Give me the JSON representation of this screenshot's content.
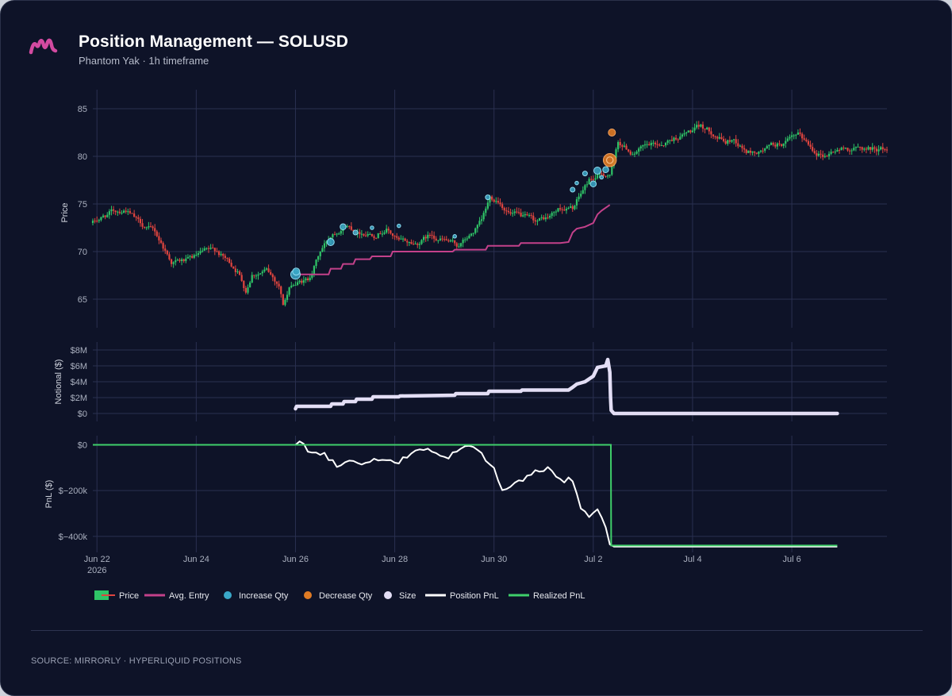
{
  "header": {
    "title": "Position Management — SOLUSD",
    "subtitle": "Phantom Yak · 1h timeframe"
  },
  "footer": {
    "source": "SOURCE: MIRRORLY · HYPERLIQUID POSITIONS"
  },
  "colors": {
    "background": "#0e1328",
    "grid": "#2a3050",
    "candle_up": "#2fc467",
    "candle_down": "#e0453f",
    "avg_entry": "#c3418a",
    "increase": "#3aa8c8",
    "decrease": "#e07b24",
    "size": "#e3def5",
    "position_pnl": "#ffffff",
    "realized_pnl": "#3fcf6a",
    "logo": "#d24aa0"
  },
  "chart_data": [
    {
      "type": "candlestick",
      "ylabel": "Price",
      "ylim": [
        62,
        87
      ],
      "yticks": [
        65,
        70,
        75,
        80,
        85
      ],
      "xlim": [
        "2026-06-21T22:00",
        "2026-07-07T22:00"
      ],
      "grid": true,
      "price_anchors": [
        [
          "2026-06-21T22:00",
          73.0
        ],
        [
          "2026-06-22T06:00",
          74.0
        ],
        [
          "2026-06-22T14:00",
          74.5
        ],
        [
          "2026-06-22T20:00",
          73.0
        ],
        [
          "2026-06-23T04:00",
          72.0
        ],
        [
          "2026-06-23T12:00",
          69.0
        ],
        [
          "2026-06-23T20:00",
          69.0
        ],
        [
          "2026-06-24T04:00",
          69.8
        ],
        [
          "2026-06-24T10:00",
          70.0
        ],
        [
          "2026-06-24T16:00",
          68.8
        ],
        [
          "2026-06-24T20:00",
          68.0
        ],
        [
          "2026-06-25T00:00",
          66.0
        ],
        [
          "2026-06-25T03:00",
          67.8
        ],
        [
          "2026-06-25T10:00",
          68.0
        ],
        [
          "2026-06-25T16:00",
          66.5
        ],
        [
          "2026-06-25T18:00",
          64.5
        ],
        [
          "2026-06-25T22:00",
          66.5
        ],
        [
          "2026-06-26T06:00",
          67.0
        ],
        [
          "2026-06-26T12:00",
          70.0
        ],
        [
          "2026-06-26T18:00",
          72.0
        ],
        [
          "2026-06-27T00:00",
          73.0
        ],
        [
          "2026-06-27T06:00",
          72.2
        ],
        [
          "2026-06-27T14:00",
          72.0
        ],
        [
          "2026-06-27T20:00",
          72.5
        ],
        [
          "2026-06-28T02:00",
          71.0
        ],
        [
          "2026-06-28T10:00",
          70.8
        ],
        [
          "2026-06-28T18:00",
          71.8
        ],
        [
          "2026-06-29T02:00",
          71.0
        ],
        [
          "2026-06-29T06:00",
          70.5
        ],
        [
          "2026-06-29T12:00",
          71.5
        ],
        [
          "2026-06-29T18:00",
          73.0
        ],
        [
          "2026-06-29T22:00",
          75.5
        ],
        [
          "2026-06-30T02:00",
          75.5
        ],
        [
          "2026-06-30T08:00",
          74.0
        ],
        [
          "2026-06-30T14:00",
          73.5
        ],
        [
          "2026-06-30T20:00",
          73.0
        ],
        [
          "2026-07-01T02:00",
          73.5
        ],
        [
          "2026-07-01T08:00",
          74.5
        ],
        [
          "2026-07-01T14:00",
          74.5
        ],
        [
          "2026-07-01T18:00",
          76.0
        ],
        [
          "2026-07-01T22:00",
          77.5
        ],
        [
          "2026-07-02T04:00",
          78.0
        ],
        [
          "2026-07-02T08:00",
          78.2
        ],
        [
          "2026-07-02T10:00",
          79.5
        ],
        [
          "2026-07-02T12:00",
          81.5
        ],
        [
          "2026-07-02T18:00",
          80.5
        ],
        [
          "2026-07-03T00:00",
          80.8
        ],
        [
          "2026-07-03T08:00",
          81.2
        ],
        [
          "2026-07-03T16:00",
          82.0
        ],
        [
          "2026-07-03T22:00",
          82.5
        ],
        [
          "2026-07-04T04:00",
          83.0
        ],
        [
          "2026-07-04T10:00",
          82.5
        ],
        [
          "2026-07-04T16:00",
          81.5
        ],
        [
          "2026-07-04T20:00",
          81.8
        ],
        [
          "2026-07-05T02:00",
          80.5
        ],
        [
          "2026-07-05T08:00",
          80.4
        ],
        [
          "2026-07-05T14:00",
          81.0
        ],
        [
          "2026-07-05T22:00",
          81.5
        ],
        [
          "2026-07-06T04:00",
          82.0
        ],
        [
          "2026-07-06T10:00",
          80.8
        ],
        [
          "2026-07-06T16:00",
          80.2
        ],
        [
          "2026-07-06T22:00",
          80.8
        ]
      ],
      "avg_entry": [
        [
          "2026-06-26T00:00",
          67.6
        ],
        [
          "2026-06-26T16:00",
          67.6
        ],
        [
          "2026-06-26T17:00",
          68.2
        ],
        [
          "2026-06-26T22:00",
          68.2
        ],
        [
          "2026-06-26T23:00",
          68.7
        ],
        [
          "2026-06-27T04:00",
          68.7
        ],
        [
          "2026-06-27T05:00",
          69.2
        ],
        [
          "2026-06-27T12:00",
          69.2
        ],
        [
          "2026-06-27T13:00",
          69.5
        ],
        [
          "2026-06-27T22:00",
          69.5
        ],
        [
          "2026-06-27T23:00",
          70.0
        ],
        [
          "2026-06-29T04:00",
          70.0
        ],
        [
          "2026-06-29T05:00",
          70.2
        ],
        [
          "2026-06-29T20:00",
          70.2
        ],
        [
          "2026-06-29T21:00",
          70.6
        ],
        [
          "2026-06-30T12:00",
          70.6
        ],
        [
          "2026-06-30T13:00",
          70.9
        ],
        [
          "2026-07-01T08:00",
          70.9
        ],
        [
          "2026-07-01T12:00",
          71.0
        ],
        [
          "2026-07-01T14:00",
          72.0
        ],
        [
          "2026-07-01T16:00",
          72.4
        ],
        [
          "2026-07-01T20:00",
          72.6
        ],
        [
          "2026-07-02T00:00",
          73.0
        ],
        [
          "2026-07-02T02:00",
          73.9
        ],
        [
          "2026-07-02T04:00",
          74.3
        ],
        [
          "2026-07-02T08:00",
          74.9
        ]
      ],
      "increase_qty": [
        [
          "2026-06-26T00:00",
          67.6,
          8
        ],
        [
          "2026-06-26T00:20",
          67.9,
          6
        ],
        [
          "2026-06-26T17:00",
          71.0,
          6
        ],
        [
          "2026-06-26T23:00",
          72.6,
          5
        ],
        [
          "2026-06-27T05:00",
          72.0,
          4
        ],
        [
          "2026-06-27T13:00",
          72.5,
          3
        ],
        [
          "2026-06-28T02:00",
          72.7,
          3
        ],
        [
          "2026-06-29T05:00",
          71.6,
          3
        ],
        [
          "2026-06-29T21:00",
          75.7,
          4
        ],
        [
          "2026-07-01T14:00",
          76.5,
          4
        ],
        [
          "2026-07-01T16:00",
          77.2,
          3
        ],
        [
          "2026-07-01T20:00",
          78.2,
          4
        ],
        [
          "2026-07-02T00:00",
          77.1,
          5
        ],
        [
          "2026-07-02T02:00",
          78.5,
          6
        ],
        [
          "2026-07-02T04:00",
          77.8,
          3
        ],
        [
          "2026-07-02T06:00",
          78.6,
          5
        ]
      ],
      "decrease_qty": [
        [
          "2026-07-02T08:00",
          79.6,
          11
        ],
        [
          "2026-07-02T09:00",
          82.5,
          6
        ]
      ]
    },
    {
      "type": "area",
      "ylabel": "Notional ($)",
      "ylim": [
        -1000000,
        9000000
      ],
      "yticks": [
        0,
        2000000,
        4000000,
        6000000,
        8000000
      ],
      "ytick_labels": [
        "$0",
        "$2M",
        "$4M",
        "$6M",
        "$8M"
      ],
      "series": [
        {
          "name": "Size",
          "points": [
            [
              "2026-06-26T00:00",
              600000
            ],
            [
              "2026-06-26T00:30",
              900000
            ],
            [
              "2026-06-26T17:00",
              900000
            ],
            [
              "2026-06-26T17:30",
              1200000
            ],
            [
              "2026-06-26T23:00",
              1200000
            ],
            [
              "2026-06-26T23:30",
              1500000
            ],
            [
              "2026-06-27T05:00",
              1500000
            ],
            [
              "2026-06-27T05:30",
              1800000
            ],
            [
              "2026-06-27T13:00",
              1800000
            ],
            [
              "2026-06-27T13:30",
              2100000
            ],
            [
              "2026-06-28T02:00",
              2100000
            ],
            [
              "2026-06-28T02:30",
              2200000
            ],
            [
              "2026-06-29T05:00",
              2300000
            ],
            [
              "2026-06-29T05:30",
              2500000
            ],
            [
              "2026-06-29T21:00",
              2500000
            ],
            [
              "2026-06-29T21:30",
              2800000
            ],
            [
              "2026-06-30T13:00",
              2800000
            ],
            [
              "2026-06-30T13:30",
              2950000
            ],
            [
              "2026-07-01T12:00",
              2950000
            ],
            [
              "2026-07-01T14:00",
              3300000
            ],
            [
              "2026-07-01T16:00",
              3700000
            ],
            [
              "2026-07-01T20:00",
              4000000
            ],
            [
              "2026-07-02T00:00",
              4700000
            ],
            [
              "2026-07-02T02:00",
              5800000
            ],
            [
              "2026-07-02T06:00",
              6000000
            ],
            [
              "2026-07-02T07:00",
              6800000
            ],
            [
              "2026-07-02T08:00",
              5200000
            ],
            [
              "2026-07-02T08:20",
              2000000
            ],
            [
              "2026-07-02T08:40",
              400000
            ],
            [
              "2026-07-02T10:00",
              0
            ],
            [
              "2026-07-06T22:00",
              0
            ]
          ]
        }
      ]
    },
    {
      "type": "line",
      "ylabel": "PnL ($)",
      "ylim": [
        -470000,
        40000
      ],
      "yticks": [
        0,
        -200000,
        -400000
      ],
      "ytick_labels": [
        "$0",
        "$−200k",
        "$−400k"
      ],
      "xticks": [
        "Jun 22",
        "Jun 24",
        "Jun 26",
        "Jun 28",
        "Jun 30",
        "Jul 2",
        "Jul 4",
        "Jul 6"
      ],
      "xtick_year": "2026",
      "series": [
        {
          "name": "Position PnL",
          "points": [
            [
              "2026-06-21T22:00",
              0
            ],
            [
              "2026-06-26T00:00",
              0
            ],
            [
              "2026-06-26T02:00",
              15000
            ],
            [
              "2026-06-26T06:00",
              -20000
            ],
            [
              "2026-06-26T14:00",
              -40000
            ],
            [
              "2026-06-26T20:00",
              -90000
            ],
            [
              "2026-06-27T02:00",
              -70000
            ],
            [
              "2026-06-27T10:00",
              -80000
            ],
            [
              "2026-06-27T18:00",
              -60000
            ],
            [
              "2026-06-28T02:00",
              -80000
            ],
            [
              "2026-06-28T08:00",
              -30000
            ],
            [
              "2026-06-28T16:00",
              -20000
            ],
            [
              "2026-06-29T00:00",
              -60000
            ],
            [
              "2026-06-29T08:00",
              -20000
            ],
            [
              "2026-06-29T14:00",
              -5000
            ],
            [
              "2026-06-29T20:00",
              -60000
            ],
            [
              "2026-06-30T00:00",
              -110000
            ],
            [
              "2026-06-30T04:00",
              -200000
            ],
            [
              "2026-06-30T08:00",
              -180000
            ],
            [
              "2026-06-30T14:00",
              -150000
            ],
            [
              "2026-06-30T20:00",
              -120000
            ],
            [
              "2026-07-01T02:00",
              -100000
            ],
            [
              "2026-07-01T08:00",
              -160000
            ],
            [
              "2026-07-01T14:00",
              -150000
            ],
            [
              "2026-07-01T18:00",
              -270000
            ],
            [
              "2026-07-01T22:00",
              -310000
            ],
            [
              "2026-07-02T02:00",
              -290000
            ],
            [
              "2026-07-02T06:00",
              -350000
            ],
            [
              "2026-07-02T08:00",
              -430000
            ],
            [
              "2026-07-02T10:00",
              -445000
            ],
            [
              "2026-07-06T22:00",
              -445000
            ]
          ]
        },
        {
          "name": "Realized PnL",
          "points": [
            [
              "2026-06-21T22:00",
              0
            ],
            [
              "2026-07-02T08:30",
              0
            ],
            [
              "2026-07-02T08:40",
              -440000
            ],
            [
              "2026-07-06T22:00",
              -440000
            ]
          ]
        }
      ]
    }
  ],
  "legend": {
    "placement": "bottom",
    "items": [
      {
        "label": "Price",
        "icon": "candle"
      },
      {
        "label": "Avg. Entry",
        "icon": "line-magenta"
      },
      {
        "label": "Increase Qty",
        "icon": "dot-teal"
      },
      {
        "label": "Decrease Qty",
        "icon": "dot-orange"
      },
      {
        "label": "Size",
        "icon": "dot-lavender"
      },
      {
        "label": "Position PnL",
        "icon": "line-white"
      },
      {
        "label": "Realized PnL",
        "icon": "line-green"
      }
    ]
  }
}
